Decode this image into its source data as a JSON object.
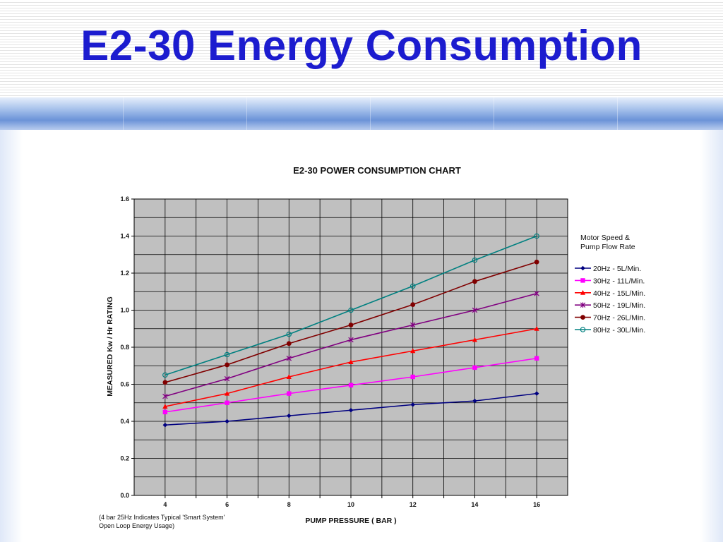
{
  "slide": {
    "title": "E2-30 Energy Consumption"
  },
  "chart_data": {
    "type": "line",
    "title": "E2-30 POWER CONSUMPTION CHART",
    "xlabel": "PUMP PRESSURE ( BAR )",
    "ylabel": "MEASURED Kw / Hr RATING",
    "x": [
      4,
      6,
      8,
      10,
      12,
      14,
      16
    ],
    "xlim": [
      3,
      17
    ],
    "ylim": [
      0,
      1.6
    ],
    "x_ticks": [
      "4",
      "6",
      "8",
      "10",
      "12",
      "14",
      "16"
    ],
    "y_ticks": [
      "0.0",
      "0.2",
      "0.4",
      "0.6",
      "0.8",
      "1.0",
      "1.2",
      "1.4",
      "1.6"
    ],
    "grid": true,
    "legend_title": "Motor Speed & Pump Flow Rate",
    "legend_title_lines": [
      "Motor Speed &",
      "Pump Flow Rate"
    ],
    "legend_position": "right",
    "note_lines": [
      "(4 bar 25Hz Indicates Typical 'Smart System'",
      "Open Loop Energy Usage)"
    ],
    "series": [
      {
        "name": "20Hz - 5L/Min.",
        "color": "#000080",
        "marker": "diamond",
        "values": [
          0.38,
          0.4,
          0.43,
          0.46,
          0.49,
          0.51,
          0.55
        ]
      },
      {
        "name": "30Hz - 11L/Min.",
        "color": "#ff00ff",
        "marker": "square",
        "values": [
          0.45,
          0.5,
          0.55,
          0.595,
          0.64,
          0.69,
          0.74
        ]
      },
      {
        "name": "40Hz - 15L/Min.",
        "color": "#ff0000",
        "marker": "triangle",
        "values": [
          0.48,
          0.55,
          0.64,
          0.72,
          0.78,
          0.84,
          0.9
        ]
      },
      {
        "name": "50Hz - 19L/Min.",
        "color": "#800080",
        "marker": "star",
        "values": [
          0.535,
          0.63,
          0.74,
          0.84,
          0.92,
          1.0,
          1.09
        ]
      },
      {
        "name": "70Hz - 26L/Min.",
        "color": "#800000",
        "marker": "circle",
        "values": [
          0.61,
          0.705,
          0.82,
          0.92,
          1.03,
          1.155,
          1.26
        ]
      },
      {
        "name": "80Hz - 30L/Min.",
        "color": "#008080",
        "marker": "open-circle",
        "values": [
          0.65,
          0.76,
          0.87,
          1.0,
          1.13,
          1.27,
          1.4
        ]
      }
    ]
  }
}
